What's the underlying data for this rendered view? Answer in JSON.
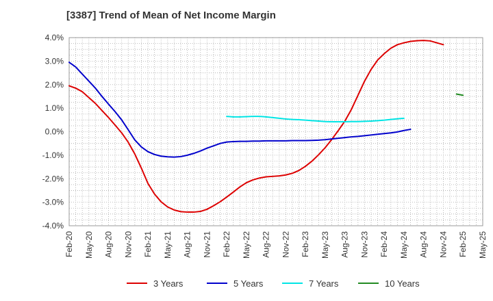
{
  "chart_data": {
    "type": "line",
    "title": "[3387]  Trend of Mean of Net Income Margin",
    "xlabel": "",
    "ylabel": "",
    "ylim": [
      -4.0,
      4.0
    ],
    "grid": true,
    "legend_position": "bottom",
    "y_ticks": [
      "4.0%",
      "3.0%",
      "2.0%",
      "1.0%",
      "0.0%",
      "-1.0%",
      "-2.0%",
      "-3.0%",
      "-4.0%"
    ],
    "y_tick_values": [
      4,
      3,
      2,
      1,
      0,
      -1,
      -2,
      -3,
      -4
    ],
    "x_ticks": [
      "Feb-20",
      "May-20",
      "Aug-20",
      "Nov-20",
      "Feb-21",
      "May-21",
      "Aug-21",
      "Nov-21",
      "Feb-22",
      "May-22",
      "Aug-22",
      "Nov-22",
      "Feb-23",
      "May-23",
      "Aug-23",
      "Nov-23",
      "Feb-24",
      "May-24",
      "Aug-24",
      "Nov-24",
      "Feb-25",
      "May-25"
    ],
    "x": [
      "Feb-20",
      "Mar-20",
      "Apr-20",
      "May-20",
      "Jun-20",
      "Jul-20",
      "Aug-20",
      "Sep-20",
      "Oct-20",
      "Nov-20",
      "Dec-20",
      "Jan-21",
      "Feb-21",
      "Mar-21",
      "Apr-21",
      "May-21",
      "Jun-21",
      "Jul-21",
      "Aug-21",
      "Sep-21",
      "Oct-21",
      "Nov-21",
      "Dec-21",
      "Jan-22",
      "Feb-22",
      "Mar-22",
      "Apr-22",
      "May-22",
      "Jun-22",
      "Jul-22",
      "Aug-22",
      "Sep-22",
      "Oct-22",
      "Nov-22",
      "Dec-22",
      "Jan-23",
      "Feb-23",
      "Mar-23",
      "Apr-23",
      "May-23",
      "Jun-23",
      "Jul-23",
      "Aug-23",
      "Sep-23",
      "Oct-23",
      "Nov-23",
      "Dec-23",
      "Jan-24",
      "Feb-24",
      "Mar-24",
      "Apr-24",
      "May-24",
      "Jun-24",
      "Jul-24",
      "Aug-24",
      "Sep-24",
      "Oct-24",
      "Nov-24",
      "Dec-24",
      "Jan-25",
      "Feb-25"
    ],
    "series": [
      {
        "name": "3 Years",
        "color": "#dd0000",
        "values": [
          1.95,
          1.85,
          1.7,
          1.45,
          1.2,
          0.9,
          0.6,
          0.28,
          -0.05,
          -0.45,
          -0.95,
          -1.55,
          -2.2,
          -2.65,
          -2.98,
          -3.2,
          -3.33,
          -3.4,
          -3.42,
          -3.42,
          -3.39,
          -3.3,
          -3.15,
          -2.98,
          -2.78,
          -2.57,
          -2.35,
          -2.17,
          -2.05,
          -1.97,
          -1.92,
          -1.9,
          -1.88,
          -1.84,
          -1.77,
          -1.65,
          -1.47,
          -1.25,
          -0.98,
          -0.68,
          -0.33,
          0.05,
          0.45,
          0.95,
          1.55,
          2.15,
          2.65,
          3.05,
          3.32,
          3.55,
          3.7,
          3.78,
          3.84,
          3.87,
          3.88,
          3.86,
          3.78,
          3.7,
          null,
          null,
          null
        ]
      },
      {
        "name": "5 Years",
        "color": "#0000cc",
        "values": [
          2.95,
          2.75,
          2.45,
          2.15,
          1.85,
          1.5,
          1.17,
          0.85,
          0.5,
          0.08,
          -0.35,
          -0.65,
          -0.85,
          -0.97,
          -1.04,
          -1.07,
          -1.08,
          -1.06,
          -1.0,
          -0.92,
          -0.82,
          -0.7,
          -0.6,
          -0.5,
          -0.44,
          -0.42,
          -0.41,
          -0.41,
          -0.4,
          -0.4,
          -0.39,
          -0.39,
          -0.39,
          -0.39,
          -0.38,
          -0.38,
          -0.38,
          -0.37,
          -0.36,
          -0.34,
          -0.31,
          -0.28,
          -0.25,
          -0.22,
          -0.2,
          -0.17,
          -0.14,
          -0.11,
          -0.08,
          -0.05,
          -0.01,
          0.05,
          0.1,
          null,
          null,
          null,
          null,
          null,
          null,
          null,
          null
        ]
      },
      {
        "name": "7 Years",
        "color": "#00e5e5",
        "values": [
          null,
          null,
          null,
          null,
          null,
          null,
          null,
          null,
          null,
          null,
          null,
          null,
          null,
          null,
          null,
          null,
          null,
          null,
          null,
          null,
          null,
          null,
          null,
          null,
          0.65,
          0.63,
          0.63,
          0.64,
          0.65,
          0.65,
          0.63,
          0.6,
          0.57,
          0.54,
          0.52,
          0.51,
          0.49,
          0.47,
          0.45,
          0.43,
          0.42,
          0.42,
          0.42,
          0.43,
          0.43,
          0.44,
          0.45,
          0.47,
          0.49,
          0.52,
          0.55,
          0.57,
          null,
          null,
          null,
          null,
          null,
          null,
          null,
          null,
          null
        ]
      },
      {
        "name": "10 Years",
        "color": "#228b22",
        "values": [
          null,
          null,
          null,
          null,
          null,
          null,
          null,
          null,
          null,
          null,
          null,
          null,
          null,
          null,
          null,
          null,
          null,
          null,
          null,
          null,
          null,
          null,
          null,
          null,
          null,
          null,
          null,
          null,
          null,
          null,
          null,
          null,
          null,
          null,
          null,
          null,
          null,
          null,
          null,
          null,
          null,
          null,
          null,
          null,
          null,
          null,
          null,
          null,
          null,
          null,
          null,
          null,
          null,
          null,
          null,
          null,
          null,
          null,
          null,
          1.6,
          1.55
        ]
      }
    ]
  }
}
